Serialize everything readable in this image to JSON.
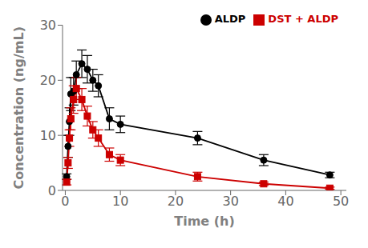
{
  "chart_data": {
    "type": "line",
    "xlabel": "Time (h)",
    "ylabel": "Concentration (ng/mL)",
    "x": [
      0.25,
      0.5,
      0.75,
      1,
      1.5,
      2,
      3,
      4,
      5,
      6,
      8,
      10,
      24,
      36,
      48
    ],
    "series": [
      {
        "name": "ALDP",
        "color": "#000000",
        "marker": "circle",
        "line_style": "solid",
        "values": [
          2.5,
          8.0,
          12.5,
          17.5,
          18.0,
          21.0,
          23.0,
          22.0,
          20.0,
          19.0,
          13.0,
          12.0,
          9.5,
          5.5,
          2.8
        ],
        "errors": [
          0.5,
          2.0,
          2.5,
          3.0,
          2.5,
          2.5,
          2.5,
          2.5,
          2.0,
          2.0,
          2.0,
          1.5,
          1.2,
          1.0,
          0.5
        ]
      },
      {
        "name": "DST + ALDP",
        "color": "#cc0000",
        "marker": "square",
        "line_style": "solid",
        "values": [
          1.5,
          5.0,
          9.5,
          13.0,
          16.5,
          18.5,
          16.5,
          13.5,
          11.0,
          9.5,
          6.5,
          5.5,
          2.5,
          1.2,
          0.4
        ],
        "errors": [
          0.5,
          1.0,
          1.5,
          2.0,
          2.5,
          2.0,
          2.0,
          1.8,
          1.5,
          1.5,
          1.2,
          1.0,
          0.8,
          0.3,
          0.2
        ]
      }
    ],
    "xlim": [
      -0.5,
      51
    ],
    "ylim": [
      0,
      30
    ],
    "xticks": [
      0,
      10,
      20,
      30,
      40,
      50
    ],
    "yticks": [
      0,
      10,
      20,
      30
    ],
    "legend": "upper right",
    "grid": false
  }
}
